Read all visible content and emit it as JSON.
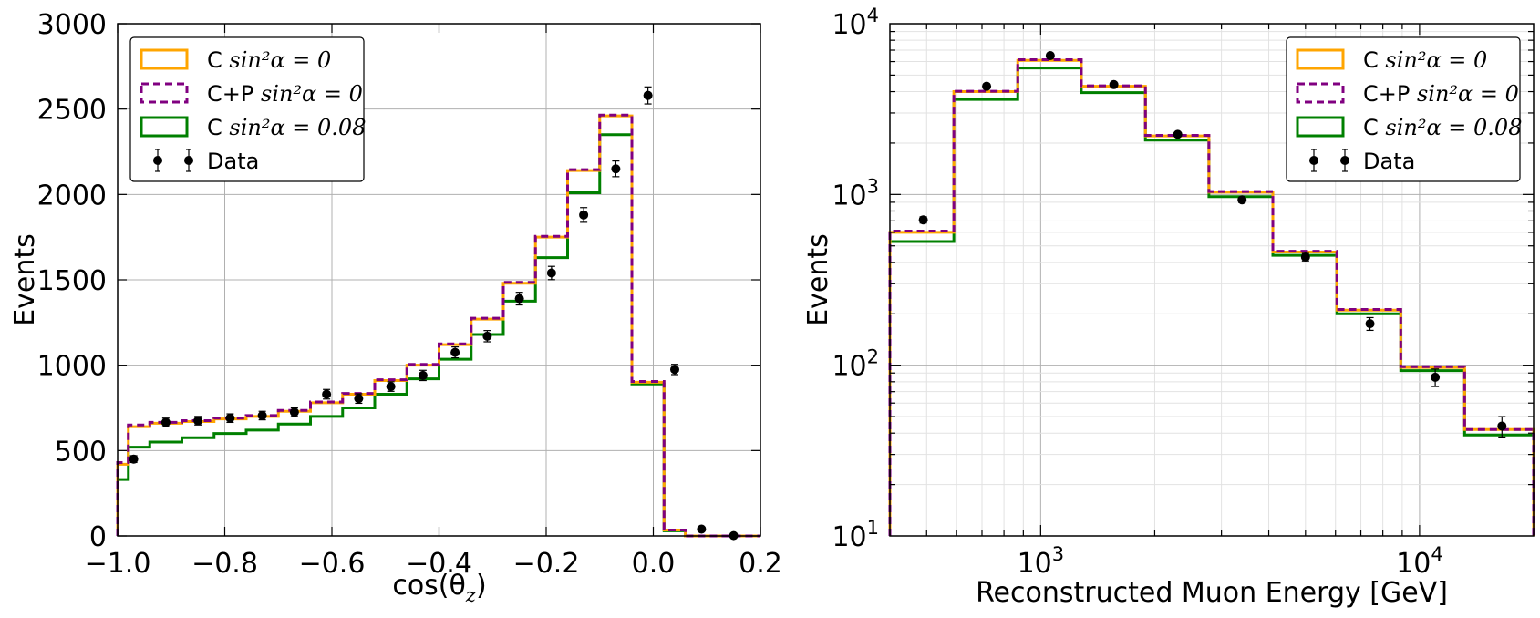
{
  "colors": {
    "orange": "#ffa500",
    "purple": "#800080",
    "green": "#008000",
    "data": "#000000"
  },
  "legend_labels": {
    "c_zero": {
      "prefix": "C ",
      "math": "sin²α = 0"
    },
    "cp_zero": {
      "prefix": "C+P ",
      "math": "sin²α = 0"
    },
    "c_008": {
      "prefix": "C ",
      "math": "sin²α = 0.08"
    },
    "data": {
      "prefix": "Data",
      "math": ""
    }
  },
  "chart_data": [
    {
      "type": "histogram",
      "ylabel": "Events",
      "xlabel": "cos(θ_z)",
      "xlabel_display": "cos(θ",
      "xlabel_sub": "z",
      "xlabel_tail": ")",
      "xlim": [
        -1.0,
        0.2
      ],
      "ylim": [
        0,
        3000
      ],
      "xticks": [
        -1.0,
        -0.8,
        -0.6,
        -0.4,
        -0.2,
        0.0,
        0.2
      ],
      "xtick_labels": [
        "−1.0",
        "−0.8",
        "−0.6",
        "−0.4",
        "−0.2",
        "0.0",
        "0.2"
      ],
      "yticks": [
        0,
        500,
        1000,
        1500,
        2000,
        2500,
        3000
      ],
      "ytick_labels": [
        "0",
        "500",
        "1000",
        "1500",
        "2000",
        "2500",
        "3000"
      ],
      "grid": true,
      "legend_position": "top-left",
      "bin_edges": [
        -1.0,
        -0.98,
        -0.94,
        -0.88,
        -0.82,
        -0.76,
        -0.7,
        -0.64,
        -0.58,
        -0.52,
        -0.46,
        -0.4,
        -0.34,
        -0.28,
        -0.22,
        -0.16,
        -0.1,
        -0.04,
        0.02,
        0.06,
        0.12,
        0.18,
        0.2
      ],
      "series": [
        {
          "name": "C sin²α = 0",
          "key": "c_zero",
          "style": "solid",
          "values": [
            420,
            640,
            660,
            670,
            685,
            700,
            730,
            780,
            830,
            910,
            1000,
            1120,
            1270,
            1480,
            1750,
            2140,
            2460,
            900,
            35,
            0,
            0,
            0
          ]
        },
        {
          "name": "C+P sin²α = 0",
          "key": "cp_zero",
          "style": "dashed",
          "values": [
            430,
            650,
            665,
            675,
            690,
            705,
            735,
            785,
            835,
            915,
            1005,
            1125,
            1275,
            1485,
            1755,
            2145,
            2465,
            905,
            35,
            0,
            0,
            0
          ]
        },
        {
          "name": "C sin²α = 0.08",
          "key": "c_008",
          "style": "solid",
          "values": [
            330,
            520,
            550,
            575,
            600,
            620,
            655,
            700,
            750,
            830,
            920,
            1035,
            1180,
            1375,
            1630,
            2010,
            2350,
            890,
            30,
            0,
            0,
            0
          ]
        }
      ],
      "data_points": {
        "name": "Data",
        "x": [
          -0.97,
          -0.91,
          -0.85,
          -0.79,
          -0.73,
          -0.67,
          -0.61,
          -0.55,
          -0.49,
          -0.43,
          -0.37,
          -0.31,
          -0.25,
          -0.19,
          -0.13,
          -0.07,
          -0.01,
          0.04,
          0.09,
          0.15
        ],
        "y": [
          450,
          665,
          675,
          690,
          705,
          725,
          830,
          805,
          875,
          940,
          1075,
          1170,
          1390,
          1540,
          1880,
          2150,
          2580,
          975,
          40,
          2
        ],
        "err": [
          20,
          25,
          25,
          25,
          25,
          25,
          28,
          28,
          28,
          30,
          32,
          33,
          37,
          39,
          43,
          46,
          50,
          30,
          6,
          1
        ]
      }
    },
    {
      "type": "histogram",
      "ylabel": "Events",
      "xlabel": "Reconstructed Muon Energy [GeV]",
      "xscale": "log",
      "yscale": "log",
      "xlim": [
        400,
        20000
      ],
      "ylim": [
        10,
        10000
      ],
      "xticks": [
        1000,
        10000
      ],
      "xtick_labels": [
        {
          "base": "10",
          "exp": "3"
        },
        {
          "base": "10",
          "exp": "4"
        }
      ],
      "yticks": [
        10,
        100,
        1000,
        10000
      ],
      "ytick_labels": [
        {
          "base": "10",
          "exp": "1"
        },
        {
          "base": "10",
          "exp": "2"
        },
        {
          "base": "10",
          "exp": "3"
        },
        {
          "base": "10",
          "exp": "4"
        }
      ],
      "grid": true,
      "legend_position": "top-right",
      "bin_edges": [
        400,
        590,
        870,
        1280,
        1890,
        2780,
        4100,
        6050,
        8920,
        13150,
        20000
      ],
      "series": [
        {
          "name": "C sin²α = 0",
          "key": "c_zero",
          "style": "solid",
          "values": [
            600,
            4000,
            6100,
            4300,
            2200,
            1030,
            460,
            210,
            97,
            42
          ]
        },
        {
          "name": "C+P sin²α = 0",
          "key": "cp_zero",
          "style": "dashed",
          "values": [
            610,
            4020,
            6150,
            4330,
            2220,
            1040,
            465,
            212,
            98,
            42
          ]
        },
        {
          "name": "C sin²α = 0.08",
          "key": "c_008",
          "style": "solid",
          "values": [
            530,
            3600,
            5500,
            3950,
            2080,
            970,
            440,
            200,
            93,
            39
          ]
        }
      ],
      "data_points": {
        "name": "Data",
        "x": [
          490,
          720,
          1060,
          1560,
          2300,
          3400,
          5000,
          7400,
          11000,
          16500
        ],
        "y": [
          710,
          4300,
          6500,
          4400,
          2250,
          930,
          430,
          175,
          85,
          44
        ],
        "err": [
          30,
          70,
          90,
          70,
          50,
          33,
          22,
          15,
          10,
          6
        ]
      }
    }
  ]
}
